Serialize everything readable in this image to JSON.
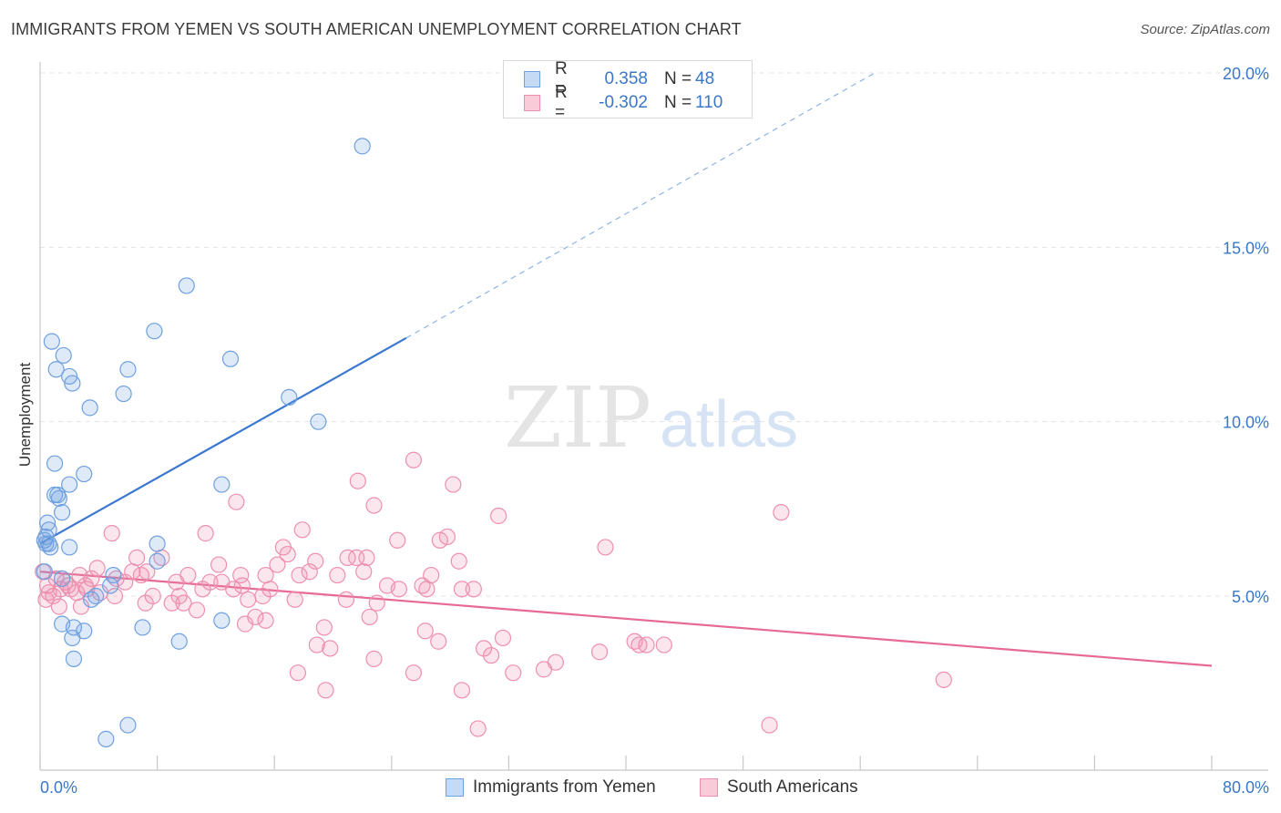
{
  "title": "IMMIGRANTS FROM YEMEN VS SOUTH AMERICAN UNEMPLOYMENT CORRELATION CHART",
  "source": "Source: ZipAtlas.com",
  "watermark": {
    "zip": "ZIP",
    "atlas": "atlas"
  },
  "legend": {
    "rows": [
      {
        "r_label": "R =",
        "r_value": "0.358",
        "n_label": "N =",
        "n_value": "48",
        "color": "#6fa0e0"
      },
      {
        "r_label": "R =",
        "r_value": "-0.302",
        "n_label": "N =",
        "n_value": "110",
        "color": "#ee8fae"
      }
    ]
  },
  "bottom_legend": [
    {
      "label": "Immigrants from Yemen",
      "color": "#6fa0e0"
    },
    {
      "label": "South Americans",
      "color": "#ee8fae"
    }
  ],
  "chart_data": {
    "type": "scatter",
    "title": "IMMIGRANTS FROM YEMEN VS SOUTH AMERICAN UNEMPLOYMENT CORRELATION CHART",
    "xlabel": "",
    "ylabel": "Unemployment",
    "xlim": [
      0,
      80
    ],
    "ylim": [
      0,
      21
    ],
    "x_tick_labels": [
      "0.0%",
      "80.0%"
    ],
    "y_ticks": [
      5,
      10,
      15,
      20
    ],
    "y_tick_labels": [
      "5.0%",
      "10.0%",
      "15.0%",
      "20.0%"
    ],
    "grid": true,
    "legend_position": "top-center",
    "series": [
      {
        "name": "Immigrants from Yemen",
        "color": "#6fa0e0",
        "trend": {
          "x": [
            0,
            25
          ],
          "y": [
            6.5,
            12.4
          ],
          "dashed_extension_to": [
            57,
            20.0
          ]
        },
        "points": [
          [
            22,
            17.9
          ],
          [
            10,
            13.9
          ],
          [
            0.8,
            12.3
          ],
          [
            1.6,
            11.9
          ],
          [
            1.1,
            11.5
          ],
          [
            2,
            11.3
          ],
          [
            2.2,
            11.1
          ],
          [
            6,
            11.5
          ],
          [
            7.8,
            12.6
          ],
          [
            13,
            11.8
          ],
          [
            5.7,
            10.8
          ],
          [
            17,
            10.7
          ],
          [
            3.4,
            10.4
          ],
          [
            19,
            10.0
          ],
          [
            1,
            8.8
          ],
          [
            3,
            8.5
          ],
          [
            2,
            8.2
          ],
          [
            12.4,
            8.2
          ],
          [
            1,
            7.9
          ],
          [
            1.2,
            7.9
          ],
          [
            1.3,
            7.8
          ],
          [
            1.5,
            7.4
          ],
          [
            0.5,
            7.1
          ],
          [
            0.6,
            6.9
          ],
          [
            0.4,
            6.7
          ],
          [
            0.3,
            6.6
          ],
          [
            0.6,
            6.5
          ],
          [
            0.4,
            6.5
          ],
          [
            0.7,
            6.4
          ],
          [
            2,
            6.4
          ],
          [
            8,
            6.5
          ],
          [
            8,
            6.0
          ],
          [
            0.3,
            5.7
          ],
          [
            5,
            5.6
          ],
          [
            4.8,
            5.3
          ],
          [
            1.5,
            5.5
          ],
          [
            3.8,
            5.0
          ],
          [
            3.5,
            4.9
          ],
          [
            1.5,
            4.2
          ],
          [
            2.3,
            4.1
          ],
          [
            3,
            4.0
          ],
          [
            7,
            4.1
          ],
          [
            12.4,
            4.3
          ],
          [
            2.2,
            3.8
          ],
          [
            9.5,
            3.7
          ],
          [
            2.3,
            3.2
          ],
          [
            6,
            1.3
          ],
          [
            4.5,
            0.9
          ]
        ]
      },
      {
        "name": "South Americans",
        "color": "#ee8fae",
        "trend": {
          "x": [
            0,
            80
          ],
          "y": [
            5.7,
            3.0
          ]
        },
        "points": [
          [
            25.5,
            8.9
          ],
          [
            21.7,
            8.3
          ],
          [
            28.2,
            8.2
          ],
          [
            13.4,
            7.7
          ],
          [
            22.8,
            7.6
          ],
          [
            31.3,
            7.3
          ],
          [
            50.6,
            7.4
          ],
          [
            4.9,
            6.8
          ],
          [
            11.3,
            6.8
          ],
          [
            17.9,
            6.9
          ],
          [
            24.4,
            6.6
          ],
          [
            27.3,
            6.6
          ],
          [
            27.8,
            6.7
          ],
          [
            38.6,
            6.4
          ],
          [
            16.6,
            6.4
          ],
          [
            16.9,
            6.2
          ],
          [
            6.6,
            6.1
          ],
          [
            8.3,
            6.1
          ],
          [
            12.2,
            5.9
          ],
          [
            16.2,
            5.9
          ],
          [
            18.8,
            6.0
          ],
          [
            21,
            6.1
          ],
          [
            21.6,
            6.1
          ],
          [
            22.3,
            6.1
          ],
          [
            28.6,
            6.0
          ],
          [
            3.9,
            5.8
          ],
          [
            6.3,
            5.7
          ],
          [
            6.9,
            5.6
          ],
          [
            7.3,
            5.7
          ],
          [
            10.1,
            5.6
          ],
          [
            13.7,
            5.6
          ],
          [
            15.4,
            5.6
          ],
          [
            17.7,
            5.6
          ],
          [
            18.4,
            5.7
          ],
          [
            20.3,
            5.6
          ],
          [
            22.1,
            5.7
          ],
          [
            26.7,
            5.6
          ],
          [
            2.7,
            5.6
          ],
          [
            3.5,
            5.5
          ],
          [
            5.2,
            5.5
          ],
          [
            5.8,
            5.4
          ],
          [
            9.3,
            5.4
          ],
          [
            11.6,
            5.4
          ],
          [
            12.4,
            5.4
          ],
          [
            13.8,
            5.3
          ],
          [
            15.7,
            5.2
          ],
          [
            23.7,
            5.3
          ],
          [
            24.5,
            5.2
          ],
          [
            26.1,
            5.3
          ],
          [
            26.4,
            5.2
          ],
          [
            28.8,
            5.2
          ],
          [
            29.6,
            5.2
          ],
          [
            0.5,
            5.3
          ],
          [
            0.9,
            5.0
          ],
          [
            1.4,
            5.2
          ],
          [
            1.9,
            5.3
          ],
          [
            2.5,
            5.1
          ],
          [
            3.2,
            5.2
          ],
          [
            4.1,
            5.1
          ],
          [
            5.1,
            5.0
          ],
          [
            7.7,
            5.0
          ],
          [
            9.5,
            5.0
          ],
          [
            11.1,
            5.2
          ],
          [
            13.2,
            5.2
          ],
          [
            14.2,
            4.9
          ],
          [
            15.2,
            5.0
          ],
          [
            17.4,
            4.9
          ],
          [
            20.9,
            4.9
          ],
          [
            23,
            4.8
          ],
          [
            7.2,
            4.8
          ],
          [
            9,
            4.8
          ],
          [
            9.8,
            4.8
          ],
          [
            2.8,
            4.7
          ],
          [
            1.3,
            4.7
          ],
          [
            10.7,
            4.6
          ],
          [
            14.7,
            4.4
          ],
          [
            15.4,
            4.3
          ],
          [
            22.5,
            4.4
          ],
          [
            14,
            4.2
          ],
          [
            19.4,
            4.1
          ],
          [
            26.3,
            4.0
          ],
          [
            31.6,
            3.8
          ],
          [
            27.2,
            3.7
          ],
          [
            18.9,
            3.6
          ],
          [
            19.8,
            3.5
          ],
          [
            30.3,
            3.5
          ],
          [
            30.8,
            3.3
          ],
          [
            22.8,
            3.2
          ],
          [
            35.2,
            3.1
          ],
          [
            38.2,
            3.4
          ],
          [
            40.6,
            3.7
          ],
          [
            40.9,
            3.6
          ],
          [
            41.4,
            3.6
          ],
          [
            42.6,
            3.6
          ],
          [
            34.4,
            2.9
          ],
          [
            32.3,
            2.8
          ],
          [
            25.5,
            2.8
          ],
          [
            17.6,
            2.8
          ],
          [
            61.7,
            2.6
          ],
          [
            19.5,
            2.3
          ],
          [
            28.8,
            2.3
          ],
          [
            29.9,
            1.2
          ],
          [
            49.8,
            1.3
          ],
          [
            0.6,
            5.1
          ],
          [
            0.4,
            4.9
          ],
          [
            0.2,
            5.7
          ],
          [
            1.1,
            5.5
          ],
          [
            1.7,
            5.4
          ],
          [
            2.1,
            5.2
          ],
          [
            3.1,
            5.3
          ]
        ]
      }
    ]
  }
}
